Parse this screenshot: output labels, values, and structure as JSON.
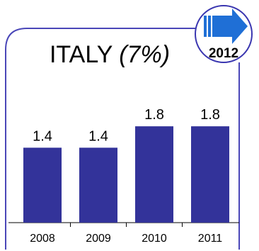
{
  "chart_data": {
    "type": "bar",
    "title": "ITALY",
    "subtitle": "(7%)",
    "categories": [
      "2008",
      "2009",
      "2010",
      "2011"
    ],
    "values": [
      1.4,
      1.4,
      1.8,
      1.8
    ],
    "data_labels": [
      "1.4",
      "1.4",
      "1.8",
      "1.8"
    ],
    "xlabel": "",
    "ylabel": "",
    "ylim": [
      0,
      3.1
    ],
    "grid": false,
    "bar_color": "#33339a",
    "border_color": "#4a47b8"
  },
  "badge": {
    "year": "2012",
    "icon": "arrow-right-icon",
    "arrow_color": "#1f6fd6",
    "border_color": "#3a36b0"
  }
}
